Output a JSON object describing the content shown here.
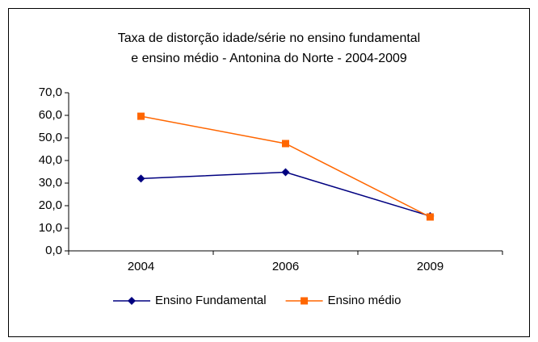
{
  "chart_data": {
    "type": "line",
    "title": [
      "Taxa de distorção idade/série no ensino fundamental",
      "e ensino médio - Antonina do Norte - 2004-2009"
    ],
    "categories": [
      "2004",
      "2006",
      "2009"
    ],
    "series": [
      {
        "name": "Ensino Fundamental",
        "color": "#000080",
        "marker": "diamond",
        "values": [
          32.0,
          34.8,
          15.4
        ]
      },
      {
        "name": "Ensino médio",
        "color": "#ff6600",
        "marker": "square",
        "values": [
          59.6,
          47.5,
          15.0
        ]
      }
    ],
    "ylim": [
      0,
      70
    ],
    "yticks": [
      {
        "value": 0,
        "label": "0,0"
      },
      {
        "value": 10,
        "label": "10,0"
      },
      {
        "value": 20,
        "label": "20,0"
      },
      {
        "value": 30,
        "label": "30,0"
      },
      {
        "value": 40,
        "label": "40,0"
      },
      {
        "value": 50,
        "label": "50,0"
      },
      {
        "value": 60,
        "label": "60,0"
      },
      {
        "value": 70,
        "label": "70,0"
      }
    ],
    "legend": "bottom"
  }
}
